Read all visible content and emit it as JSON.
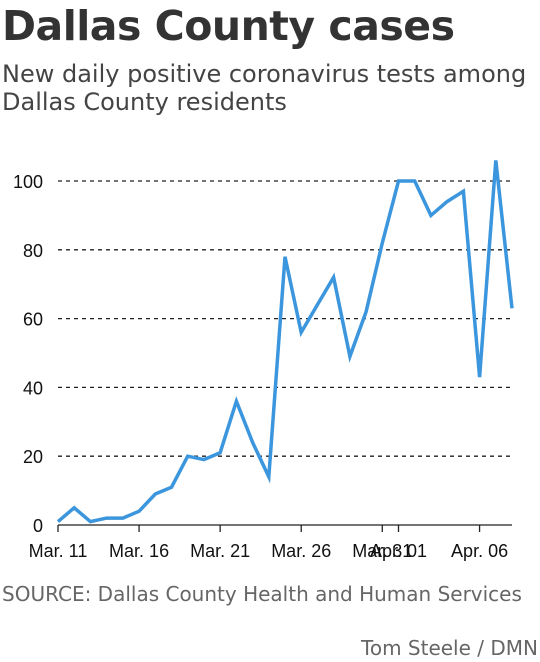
{
  "title": "Dallas County cases",
  "subtitle": "New daily positive coronavirus tests among Dallas County residents",
  "source": "SOURCE: Dallas County Health and Human Services",
  "credit": "Tom Steele / DMN",
  "chart_data": {
    "type": "line",
    "title": "Dallas County cases",
    "subtitle": "New daily positive coronavirus tests among Dallas County residents",
    "xlabel": "",
    "ylabel": "",
    "ylim": [
      0,
      108
    ],
    "yticks": [
      0,
      20,
      40,
      60,
      80,
      100
    ],
    "xticks": [
      {
        "label": "Mar. 11",
        "date": "2020-03-11"
      },
      {
        "label": "Mar. 16",
        "date": "2020-03-16"
      },
      {
        "label": "Mar. 21",
        "date": "2020-03-21"
      },
      {
        "label": "Mar. 26",
        "date": "2020-03-26"
      },
      {
        "label": "Mar. 31",
        "date": "2020-03-31"
      },
      {
        "label": "Apr. 01",
        "date": "2020-04-01"
      },
      {
        "label": "Apr. 06",
        "date": "2020-04-06"
      }
    ],
    "grid": "horizontal dashed",
    "line_color": "#3b96dd",
    "x": [
      "2020-03-11",
      "2020-03-12",
      "2020-03-13",
      "2020-03-14",
      "2020-03-15",
      "2020-03-16",
      "2020-03-17",
      "2020-03-18",
      "2020-03-19",
      "2020-03-20",
      "2020-03-21",
      "2020-03-22",
      "2020-03-23",
      "2020-03-24",
      "2020-03-25",
      "2020-03-26",
      "2020-03-27",
      "2020-03-28",
      "2020-03-29",
      "2020-03-30",
      "2020-03-31",
      "2020-04-01",
      "2020-04-02",
      "2020-04-03",
      "2020-04-04",
      "2020-04-05",
      "2020-04-06",
      "2020-04-07",
      "2020-04-08"
    ],
    "values": [
      1,
      5,
      1,
      2,
      2,
      4,
      9,
      11,
      20,
      19,
      21,
      36,
      24,
      14,
      78,
      56,
      64,
      72,
      49,
      62,
      82,
      100,
      100,
      90,
      94,
      97,
      43,
      106,
      63
    ]
  }
}
